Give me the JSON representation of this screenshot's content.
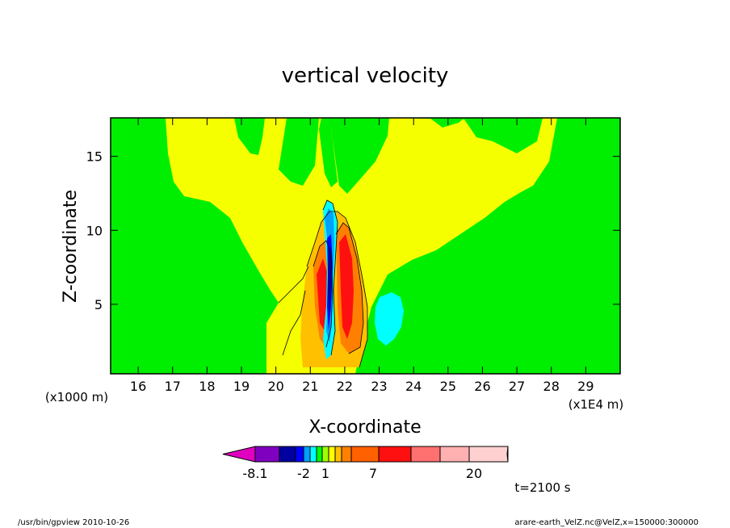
{
  "chart_data": {
    "type": "heatmap",
    "title": "vertical velocity",
    "xlabel": "X-coordinate",
    "ylabel": "Z-coordinate",
    "x_unit": "(x1E4 m)",
    "y_unit": "(x1000 m)",
    "xlim": [
      15.2,
      30.0
    ],
    "ylim": [
      0.3,
      17.6
    ],
    "x_ticks": [
      16,
      17,
      18,
      19,
      20,
      21,
      22,
      23,
      24,
      25,
      26,
      27,
      28,
      29
    ],
    "y_ticks": [
      5,
      10,
      15
    ],
    "colorbar": {
      "colors": [
        "#e000c0",
        "#8000c0",
        "#0000a0",
        "#0000ff",
        "#00a0ff",
        "#00ffff",
        "#00ff00",
        "#a0ff00",
        "#ffff00",
        "#ffc000",
        "#ff8000",
        "#ff6000",
        "#ff1010",
        "#ff7070",
        "#ffb0b0",
        "#ffd0d0"
      ],
      "labels": [
        "-8.1",
        "-2",
        "1",
        "7",
        "20"
      ]
    },
    "time_label": "t=2100 s"
  },
  "footer": {
    "left": "/usr/bin/gpview   2010-10-26",
    "right": "arare-earth_VelZ.nc@VelZ,x=150000:300000"
  }
}
